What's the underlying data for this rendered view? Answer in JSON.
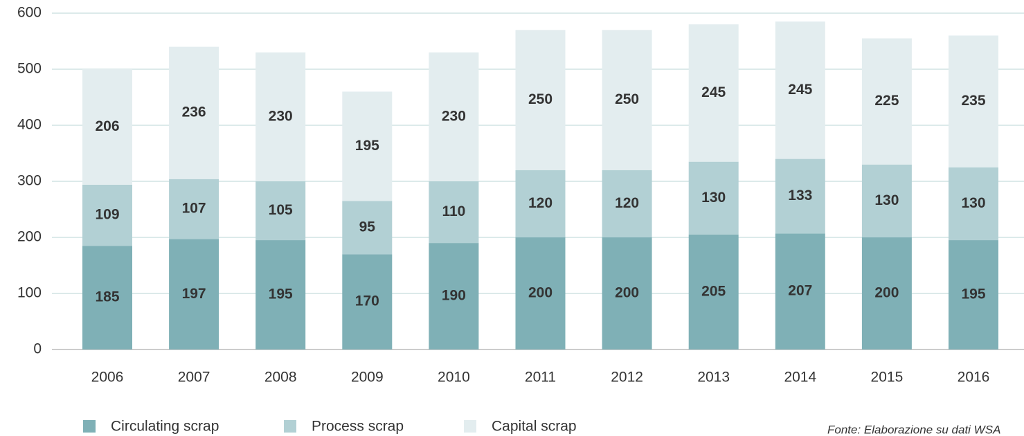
{
  "chart_data": {
    "type": "stacked_bar",
    "categories": [
      "2006",
      "2007",
      "2008",
      "2009",
      "2010",
      "2011",
      "2012",
      "2013",
      "2014",
      "2015",
      "2016"
    ],
    "series": [
      {
        "name": "Circulating scrap",
        "color": "#7fb0b6",
        "label_color": "#ffffff",
        "values": [
          185,
          197,
          195,
          170,
          190,
          200,
          200,
          205,
          207,
          200,
          195
        ]
      },
      {
        "name": "Process scrap",
        "color": "#b2d0d4",
        "label_color": "#ffffff",
        "values": [
          109,
          107,
          105,
          95,
          110,
          120,
          120,
          130,
          133,
          130,
          130
        ]
      },
      {
        "name": "Capital scrap",
        "color": "#e3edef",
        "label_color": "#7fb0b6",
        "values": [
          206,
          236,
          230,
          195,
          230,
          250,
          250,
          245,
          245,
          225,
          235
        ]
      }
    ],
    "ylim": [
      0,
      600
    ],
    "yticks": [
      0,
      100,
      200,
      300,
      400,
      500,
      600
    ],
    "grid": true,
    "source": "Fonte: Elaborazione su dati WSA"
  }
}
